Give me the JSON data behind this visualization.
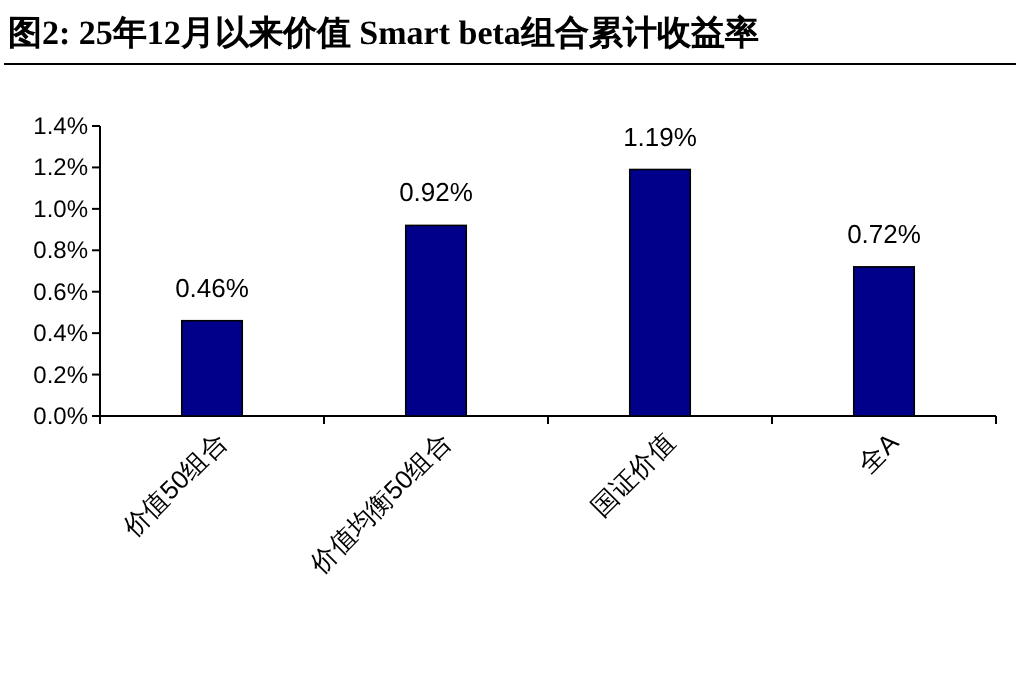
{
  "chart_data": {
    "type": "bar",
    "title": "图2:  25年12月以来价值 Smart beta组合累计收益率",
    "categories": [
      "价值50组合",
      "价值均衡50组合",
      "国证价值",
      "全A"
    ],
    "values": [
      0.46,
      0.92,
      1.19,
      0.72
    ],
    "value_labels": [
      "0.46%",
      "0.92%",
      "1.19%",
      "0.72%"
    ],
    "color": "#00008b",
    "ylim": [
      0,
      1.4
    ],
    "yticks": [
      {
        "value": 0,
        "label": "0.0%"
      },
      {
        "value": 0.2,
        "label": "0.2%"
      },
      {
        "value": 0.4,
        "label": "0.4%"
      },
      {
        "value": 0.6,
        "label": "0.6%"
      },
      {
        "value": 0.8,
        "label": "0.8%"
      },
      {
        "value": 1.0,
        "label": "1.0%"
      },
      {
        "value": 1.2,
        "label": "1.2%"
      },
      {
        "value": 1.4,
        "label": "1.4%"
      }
    ],
    "grid": false
  }
}
